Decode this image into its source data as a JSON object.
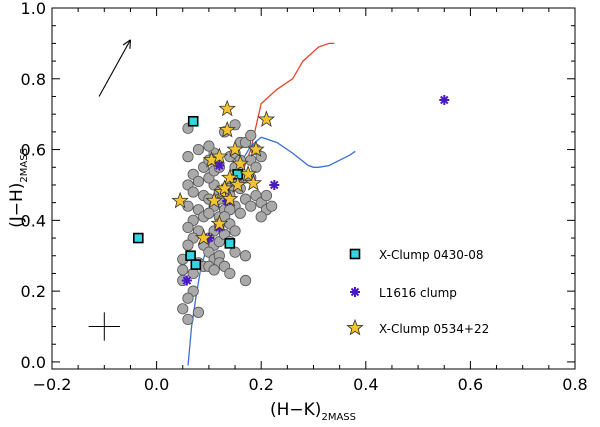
{
  "chart_data": {
    "type": "scatter",
    "xlabel": "(H−K)",
    "xlabel_sub": "2MASS",
    "ylabel": "(J−H)",
    "ylabel_sub": "2MASS",
    "xlim": [
      -0.2,
      0.8
    ],
    "ylim": [
      -0.02,
      1.0
    ],
    "x_ticks": [
      -0.2,
      0.0,
      0.2,
      0.4,
      0.6,
      0.8
    ],
    "x_tick_labels": [
      "−0.2",
      "0.0",
      "0.2",
      "0.4",
      "0.6",
      "0.8"
    ],
    "y_ticks": [
      0.0,
      0.2,
      0.4,
      0.6,
      0.8,
      1.0
    ],
    "y_tick_labels": [
      "0.0",
      "0.2",
      "0.4",
      "0.6",
      "0.8",
      "1.0"
    ],
    "legend_position": "right",
    "reddening_vector": {
      "from": [
        -0.11,
        0.75
      ],
      "to": [
        -0.05,
        0.91
      ]
    },
    "error_bar": {
      "x": -0.1,
      "y": 0.1,
      "dx": 0.03,
      "dy": 0.04
    },
    "curves": [
      {
        "name": "giant branch",
        "color": "#e8432a",
        "x": [
          0.14,
          0.16,
          0.18,
          0.2,
          0.23,
          0.26,
          0.28,
          0.31,
          0.33,
          0.34
        ],
        "y": [
          0.45,
          0.52,
          0.6,
          0.73,
          0.77,
          0.8,
          0.85,
          0.89,
          0.9,
          0.9
        ]
      },
      {
        "name": "dwarf branch",
        "color": "#3a6fd8",
        "x": [
          0.06,
          0.062,
          0.067,
          0.075,
          0.085,
          0.1,
          0.12,
          0.14,
          0.16,
          0.18,
          0.2,
          0.23,
          0.26,
          0.29,
          0.3,
          0.31,
          0.33,
          0.35,
          0.37,
          0.38
        ],
        "y": [
          -0.01,
          0.02,
          0.1,
          0.18,
          0.27,
          0.34,
          0.41,
          0.49,
          0.56,
          0.61,
          0.635,
          0.62,
          0.59,
          0.555,
          0.55,
          0.55,
          0.555,
          0.57,
          0.585,
          0.595
        ]
      }
    ],
    "series": [
      {
        "name": "background",
        "marker": "circle",
        "color": "#a9a9a9",
        "points": [
          [
            0.06,
            0.66
          ],
          [
            0.08,
            0.6
          ],
          [
            0.06,
            0.58
          ],
          [
            0.09,
            0.55
          ],
          [
            0.07,
            0.53
          ],
          [
            0.08,
            0.51
          ],
          [
            0.06,
            0.5
          ],
          [
            0.07,
            0.48
          ],
          [
            0.09,
            0.47
          ],
          [
            0.06,
            0.44
          ],
          [
            0.08,
            0.43
          ],
          [
            0.07,
            0.4
          ],
          [
            0.09,
            0.41
          ],
          [
            0.06,
            0.38
          ],
          [
            0.08,
            0.37
          ],
          [
            0.07,
            0.35
          ],
          [
            0.06,
            0.33
          ],
          [
            0.09,
            0.33
          ],
          [
            0.05,
            0.29
          ],
          [
            0.08,
            0.28
          ],
          [
            0.05,
            0.26
          ],
          [
            0.07,
            0.25
          ],
          [
            0.09,
            0.27
          ],
          [
            0.05,
            0.23
          ],
          [
            0.07,
            0.2
          ],
          [
            0.06,
            0.18
          ],
          [
            0.05,
            0.15
          ],
          [
            0.08,
            0.14
          ],
          [
            0.06,
            0.12
          ],
          [
            0.1,
            0.46
          ],
          [
            0.11,
            0.44
          ],
          [
            0.1,
            0.42
          ],
          [
            0.12,
            0.41
          ],
          [
            0.11,
            0.5
          ],
          [
            0.1,
            0.52
          ],
          [
            0.11,
            0.54
          ],
          [
            0.12,
            0.55
          ],
          [
            0.1,
            0.57
          ],
          [
            0.11,
            0.59
          ],
          [
            0.1,
            0.61
          ],
          [
            0.12,
            0.48
          ],
          [
            0.13,
            0.47
          ],
          [
            0.12,
            0.46
          ],
          [
            0.13,
            0.43
          ],
          [
            0.11,
            0.37
          ],
          [
            0.12,
            0.39
          ],
          [
            0.1,
            0.35
          ],
          [
            0.11,
            0.33
          ],
          [
            0.12,
            0.34
          ],
          [
            0.1,
            0.31
          ],
          [
            0.11,
            0.29
          ],
          [
            0.12,
            0.3
          ],
          [
            0.1,
            0.27
          ],
          [
            0.12,
            0.28
          ],
          [
            0.11,
            0.26
          ],
          [
            0.13,
            0.27
          ],
          [
            0.14,
            0.49
          ],
          [
            0.15,
            0.55
          ],
          [
            0.14,
            0.58
          ],
          [
            0.16,
            0.62
          ],
          [
            0.15,
            0.59
          ],
          [
            0.16,
            0.57
          ],
          [
            0.17,
            0.52
          ],
          [
            0.15,
            0.51
          ],
          [
            0.14,
            0.47
          ],
          [
            0.16,
            0.49
          ],
          [
            0.17,
            0.46
          ],
          [
            0.15,
            0.44
          ],
          [
            0.14,
            0.43
          ],
          [
            0.16,
            0.42
          ],
          [
            0.13,
            0.41
          ],
          [
            0.14,
            0.39
          ],
          [
            0.15,
            0.37
          ],
          [
            0.13,
            0.36
          ],
          [
            0.14,
            0.34
          ],
          [
            0.15,
            0.31
          ],
          [
            0.17,
            0.3
          ],
          [
            0.18,
            0.57
          ],
          [
            0.19,
            0.55
          ],
          [
            0.18,
            0.52
          ],
          [
            0.17,
            0.62
          ],
          [
            0.18,
            0.64
          ],
          [
            0.19,
            0.6
          ],
          [
            0.2,
            0.58
          ],
          [
            0.19,
            0.47
          ],
          [
            0.2,
            0.45
          ],
          [
            0.21,
            0.43
          ],
          [
            0.2,
            0.41
          ],
          [
            0.22,
            0.44
          ],
          [
            0.18,
            0.44
          ],
          [
            0.21,
            0.47
          ],
          [
            0.14,
            0.25
          ],
          [
            0.17,
            0.23
          ],
          [
            0.13,
            0.65
          ],
          [
            0.15,
            0.67
          ]
        ]
      },
      {
        "name": "X-Clump 0430-08",
        "marker": "square",
        "color": "#33d6e0",
        "points": [
          [
            0.07,
            0.68
          ],
          [
            0.155,
            0.53
          ],
          [
            -0.035,
            0.35
          ],
          [
            0.14,
            0.335
          ],
          [
            0.065,
            0.3
          ],
          [
            0.075,
            0.275
          ]
        ]
      },
      {
        "name": "L1616 clump",
        "marker": "asterisk",
        "color": "#4a18c4",
        "points": [
          [
            0.55,
            0.74
          ],
          [
            0.225,
            0.5
          ],
          [
            0.12,
            0.555
          ],
          [
            0.135,
            0.455
          ],
          [
            0.1,
            0.35
          ],
          [
            0.12,
            0.38
          ],
          [
            0.058,
            0.23
          ]
        ]
      },
      {
        "name": "X-Clump 0534+22",
        "marker": "star",
        "color": "#f4c430",
        "points": [
          [
            0.135,
            0.715
          ],
          [
            0.21,
            0.685
          ],
          [
            0.135,
            0.655
          ],
          [
            0.15,
            0.6
          ],
          [
            0.19,
            0.6
          ],
          [
            0.105,
            0.57
          ],
          [
            0.12,
            0.58
          ],
          [
            0.16,
            0.56
          ],
          [
            0.175,
            0.53
          ],
          [
            0.14,
            0.52
          ],
          [
            0.155,
            0.5
          ],
          [
            0.185,
            0.505
          ],
          [
            0.125,
            0.48
          ],
          [
            0.14,
            0.46
          ],
          [
            0.13,
            0.49
          ],
          [
            0.11,
            0.455
          ],
          [
            0.045,
            0.455
          ],
          [
            0.12,
            0.39
          ],
          [
            0.09,
            0.35
          ]
        ]
      }
    ],
    "legend": [
      {
        "label": "X-Clump 0430-08",
        "marker": "square",
        "color": "#33d6e0"
      },
      {
        "label": "L1616 clump",
        "marker": "asterisk",
        "color": "#4a18c4"
      },
      {
        "label": "X-Clump 0534+22",
        "marker": "star",
        "color": "#f4c430"
      }
    ]
  }
}
